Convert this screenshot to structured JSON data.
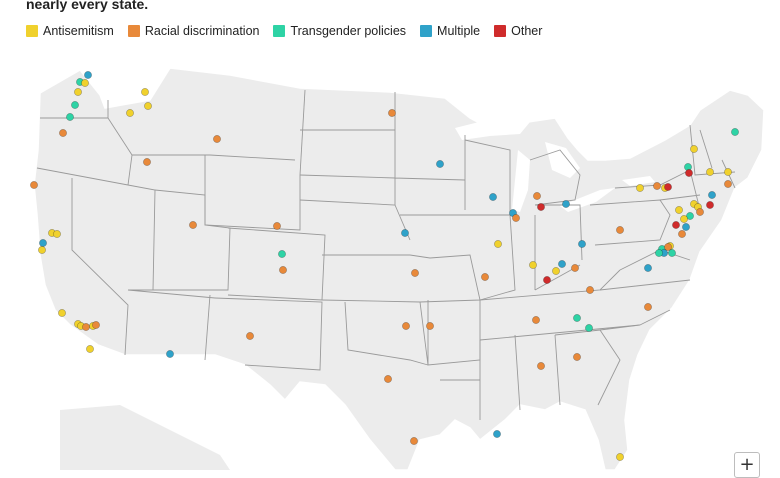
{
  "header": {
    "subtitle_fragment": "nearly every state."
  },
  "legend": [
    {
      "label": "Antisemitism",
      "color": "#f0d12d"
    },
    {
      "label": "Racial discrimination",
      "color": "#e8893a"
    },
    {
      "label": "Transgender policies",
      "color": "#2ed3a5"
    },
    {
      "label": "Multiple",
      "color": "#2fa2c9"
    },
    {
      "label": "Other",
      "color": "#cf2b2b"
    }
  ],
  "map": {
    "region": "United States",
    "land_color": "#ececec",
    "border_color": "#ffffff",
    "state_line_color": "#9a9a9a"
  },
  "controls": {
    "zoom_in_label": "+"
  }
}
